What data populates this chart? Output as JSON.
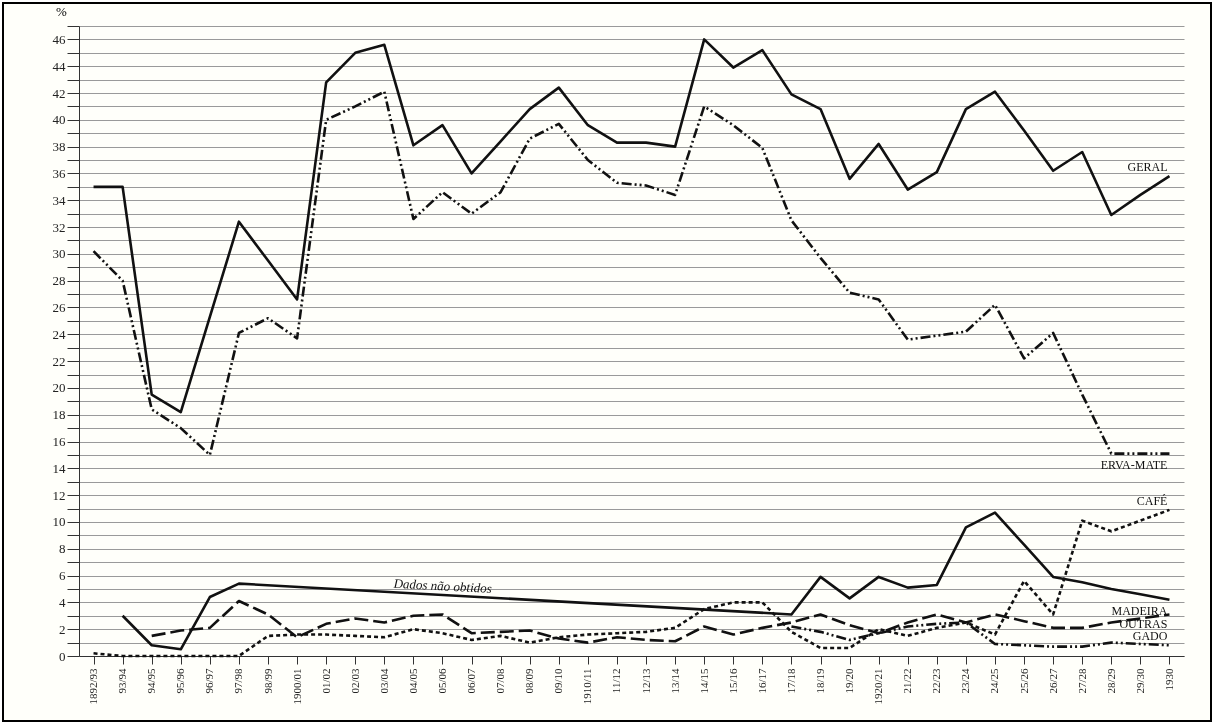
{
  "chart_data": {
    "type": "line",
    "ylabel": "%",
    "categories": [
      "1892/93",
      "93/94",
      "94/95",
      "95/96",
      "96/97",
      "97/98",
      "98/99",
      "1900/01",
      "01/02",
      "02/03",
      "03/04",
      "04/05",
      "05/06",
      "06/07",
      "07/08",
      "08/09",
      "09/10",
      "1910/11",
      "11/12",
      "12/13",
      "13/14",
      "14/15",
      "15/16",
      "16/17",
      "17/18",
      "18/19",
      "19/20",
      "1920/21",
      "21/22",
      "22/23",
      "23/24",
      "24/25",
      "25/26",
      "26/27",
      "27/28",
      "28/29",
      "29/30",
      "1930"
    ],
    "series": [
      {
        "name": "GERAL",
        "color": "#111111",
        "line_style": "solid",
        "values": [
          35,
          35,
          19.5,
          18.2,
          25.3,
          32.4,
          29.5,
          26.6,
          42.8,
          45,
          45.6,
          38.1,
          39.6,
          36,
          38.4,
          40.8,
          42.4,
          39.6,
          38.3,
          38.3,
          38,
          46,
          43.9,
          45.2,
          41.9,
          40.8,
          35.6,
          38.2,
          34.8,
          36.1,
          40.8,
          42.1,
          39.2,
          36.2,
          37.6,
          32.9,
          34.4,
          35.8
        ]
      },
      {
        "name": "ERVA-MATE",
        "color": "#111111",
        "line_style": "dashdot",
        "values": [
          30.2,
          28,
          18.4,
          17,
          15,
          24.1,
          25.2,
          23.7,
          40,
          41,
          42.1,
          32.6,
          34.6,
          33,
          34.6,
          38.6,
          39.7,
          37,
          35.3,
          35.1,
          34.4,
          41,
          39.6,
          37.9,
          32.5,
          29.7,
          27.1,
          26.6,
          23.6,
          23.9,
          24.2,
          26.2,
          22.2,
          24.1,
          19.5,
          15.1,
          15.1,
          15.1
        ]
      },
      {
        "name": "CAFÉ",
        "color": "#111111",
        "line_style": "dotted",
        "values": [
          0.2,
          0,
          0,
          0,
          0,
          0,
          1.5,
          1.6,
          1.6,
          1.5,
          1.4,
          2.0,
          1.7,
          1.2,
          1.5,
          1.0,
          1.4,
          1.6,
          1.7,
          1.8,
          2.1,
          3.5,
          4.0,
          4.0,
          1.8,
          0.6,
          0.6,
          2.0,
          1.5,
          2.1,
          2.5,
          1.6,
          5.6,
          3.1,
          10.1,
          9.3,
          10.1,
          10.9
        ]
      },
      {
        "name": "MADEIRA",
        "color": "#111111",
        "line_style": "solid",
        "values": [
          null,
          3.0,
          0.8,
          0.5,
          4.4,
          5.4,
          null,
          null,
          null,
          null,
          null,
          null,
          null,
          null,
          null,
          null,
          null,
          null,
          null,
          null,
          null,
          null,
          null,
          null,
          3.1,
          5.9,
          4.3,
          5.9,
          5.1,
          5.3,
          9.6,
          10.7,
          8.3,
          5.9,
          5.5,
          5.0,
          4.6,
          4.2
        ]
      },
      {
        "name": "OUTRAS",
        "color": "#111111",
        "line_style": "dashed",
        "values": [
          null,
          null,
          1.5,
          1.9,
          2.1,
          4.1,
          3.1,
          1.4,
          2.4,
          2.8,
          2.5,
          3.0,
          3.1,
          1.7,
          1.8,
          1.9,
          1.3,
          1.0,
          1.4,
          1.2,
          1.1,
          2.2,
          1.6,
          2.1,
          2.5,
          3.1,
          2.3,
          1.7,
          2.5,
          3.1,
          2.5,
          3.1,
          2.6,
          2.1,
          2.1,
          2.5,
          2.8,
          3.1
        ]
      },
      {
        "name": "GADO",
        "color": "#111111",
        "line_style": "dashdot",
        "values": [
          null,
          null,
          null,
          null,
          null,
          null,
          null,
          null,
          null,
          null,
          null,
          null,
          null,
          null,
          null,
          null,
          null,
          null,
          null,
          null,
          null,
          null,
          null,
          null,
          2.2,
          1.8,
          1.2,
          1.7,
          2.2,
          2.4,
          2.5,
          0.9,
          0.8,
          0.7,
          0.7,
          1.0,
          0.9,
          0.8
        ]
      }
    ],
    "annotations": [
      {
        "text": "Dados não obtidos",
        "x": "05/06",
        "y": 4.9
      }
    ],
    "ylim": [
      0,
      47
    ],
    "yticks": [
      0,
      {
        "value": 1,
        "label": null
      },
      2,
      {
        "value": 3,
        "label": null
      },
      4,
      {
        "value": 5,
        "label": null
      },
      6,
      {
        "value": 7,
        "label": null
      },
      8,
      {
        "value": 9,
        "label": null
      },
      10,
      {
        "value": 11,
        "label": null
      },
      12,
      {
        "value": 13,
        "label": null
      },
      14,
      {
        "value": 15,
        "label": null
      },
      16,
      {
        "value": 17,
        "label": null
      },
      18,
      {
        "value": 19,
        "label": null
      },
      20,
      {
        "value": 21,
        "label": null
      },
      22,
      {
        "value": 23,
        "label": null
      },
      24,
      {
        "value": 25,
        "label": null
      },
      26,
      {
        "value": 27,
        "label": null
      },
      28,
      {
        "value": 29,
        "label": null
      },
      30,
      {
        "value": 31,
        "label": null
      },
      32,
      {
        "value": 33,
        "label": null
      },
      34,
      {
        "value": 35,
        "label": null
      },
      36,
      {
        "value": 37,
        "label": null
      },
      38,
      {
        "value": 39,
        "label": null
      },
      40,
      {
        "value": 41,
        "label": null
      },
      42,
      {
        "value": 43,
        "label": null
      },
      44,
      {
        "value": 45,
        "label": null
      },
      46,
      {
        "value": 47,
        "label": null
      }
    ],
    "grid": "y",
    "legend": false
  }
}
